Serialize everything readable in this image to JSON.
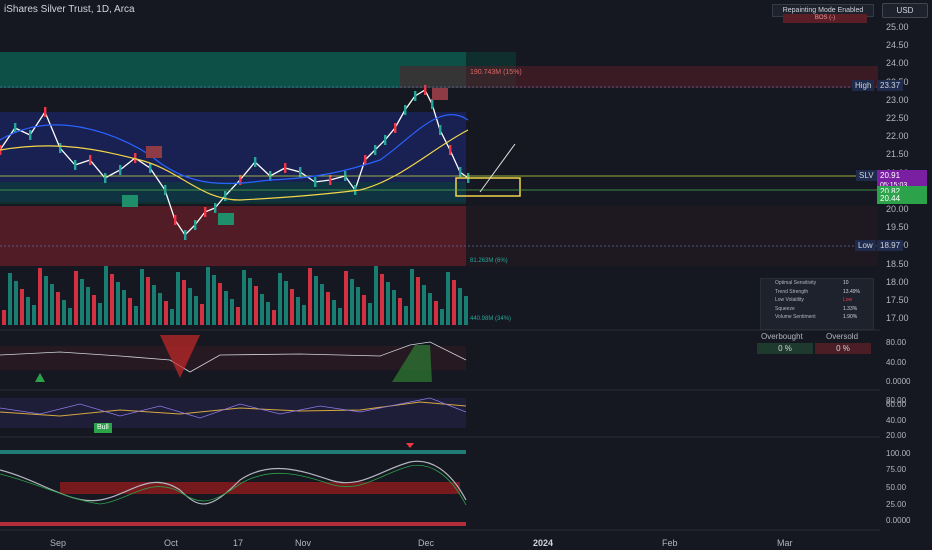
{
  "header": {
    "title": "iShares Silver Trust, 1D, Arca",
    "repainting_label": "Repainting Mode Enabled",
    "bos_label": "BOS (-)",
    "currency": "USD"
  },
  "price_axis": [
    "25.00",
    "24.50",
    "24.00",
    "23.50",
    "23.00",
    "22.50",
    "22.00",
    "21.50",
    "21.00",
    "20.50",
    "20.00",
    "19.50",
    "19.00",
    "18.50",
    "18.00",
    "17.50",
    "17.00"
  ],
  "price_tags": {
    "high_label": "High",
    "high_value": "23.37",
    "slv_label": "SLV",
    "slv_value": "20.91",
    "countdown": "05:15:03",
    "level1": "20.82",
    "level2": "20.44",
    "low_label": "Low",
    "low_value": "18.97"
  },
  "volume_labels": {
    "top": "190.743M (15%)",
    "mid": "81.263M (6%)",
    "bottom": "440.98M (34%)"
  },
  "info_table": [
    {
      "label": "Optimal Sensitivity",
      "value": "10"
    },
    {
      "label": "Trend Strength",
      "value": "13.49%"
    },
    {
      "label": "Low Volatility",
      "value": "Low"
    },
    {
      "label": "Squeeze",
      "value": "1.33%"
    },
    {
      "label": "Volume Sentiment",
      "value": "1.90%"
    }
  ],
  "ob_os": {
    "overbought_label": "Overbought",
    "oversold_label": "Oversold",
    "overbought_value": "0 %",
    "oversold_value": "0 %"
  },
  "osc1_axis": [
    "80.00",
    "40.00",
    "0.0000"
  ],
  "osc2_axis": [
    "80.00",
    "60.00",
    "40.00",
    "20.00"
  ],
  "osc3_axis": [
    "100.00",
    "75.00",
    "50.00",
    "25.00",
    "0.0000"
  ],
  "bull_label": "Bull",
  "time_axis": [
    "Sep",
    "Oct",
    "17",
    "Nov",
    "Dec",
    "2024",
    "Feb",
    "Mar"
  ],
  "colors": {
    "background": "#151821",
    "up": "#089981",
    "down": "#f23645",
    "accent_blue": "#2962ff",
    "slv_tag": "#7b1fa2"
  }
}
